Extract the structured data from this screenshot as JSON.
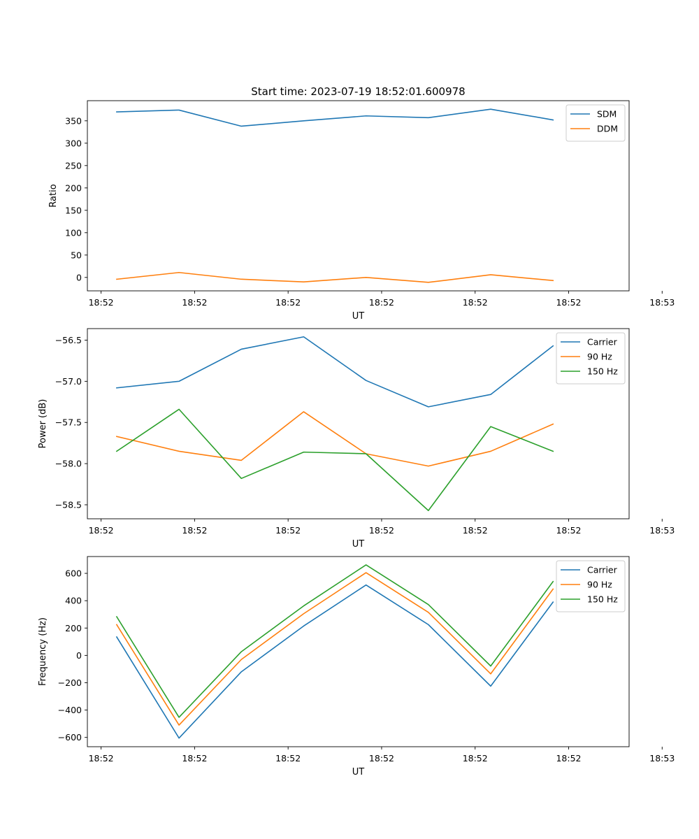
{
  "figure": {
    "title": "Start time: 2023-07-19 18:52:01.600978"
  },
  "colors": {
    "blue": "#1f77b4",
    "orange": "#ff7f0e",
    "green": "#2ca02c"
  },
  "chart_data": [
    {
      "type": "line",
      "title": "Start time: 2023-07-19 18:52:01.600978",
      "xlabel": "UT",
      "ylabel": "Ratio",
      "x": [
        1,
        2,
        3,
        4,
        5,
        6,
        7,
        8
      ],
      "xlim": [
        0.53,
        9.22
      ],
      "xticks": [
        0.75,
        2.25,
        3.75,
        5.25,
        6.75,
        8.25,
        9.75
      ],
      "xtick_labels": [
        "18:52",
        "18:52",
        "18:52",
        "18:52",
        "18:52",
        "18:52",
        "18:53"
      ],
      "ylim": [
        -30,
        395
      ],
      "yticks": [
        0,
        50,
        100,
        150,
        200,
        250,
        300,
        350
      ],
      "ytick_labels": [
        "0",
        "50",
        "100",
        "150",
        "200",
        "250",
        "300",
        "350"
      ],
      "legend": "top-right",
      "series": [
        {
          "name": "SDM",
          "color": "#1f77b4",
          "values": [
            370,
            374,
            338,
            350,
            361,
            357,
            376,
            352
          ]
        },
        {
          "name": "DDM",
          "color": "#ff7f0e",
          "values": [
            -4,
            11,
            -4,
            -10,
            0,
            -11,
            6,
            -7
          ]
        }
      ]
    },
    {
      "type": "line",
      "title": "",
      "xlabel": "UT",
      "ylabel": "Power (dB)",
      "x": [
        1,
        2,
        3,
        4,
        5,
        6,
        7,
        8
      ],
      "xlim": [
        0.53,
        9.22
      ],
      "xticks": [
        0.75,
        2.25,
        3.75,
        5.25,
        6.75,
        8.25,
        9.75
      ],
      "xtick_labels": [
        "18:52",
        "18:52",
        "18:52",
        "18:52",
        "18:52",
        "18:52",
        "18:53"
      ],
      "ylim": [
        -58.67,
        -56.36
      ],
      "yticks": [
        -58.5,
        -58.0,
        -57.5,
        -57.0,
        -56.5
      ],
      "ytick_labels": [
        "−58.5",
        "−58.0",
        "−57.5",
        "−57.0",
        "−56.5"
      ],
      "legend": "top-right",
      "series": [
        {
          "name": "Carrier",
          "color": "#1f77b4",
          "values": [
            -57.08,
            -57.0,
            -56.61,
            -56.46,
            -56.99,
            -57.31,
            -57.16,
            -56.57
          ]
        },
        {
          "name": "90 Hz",
          "color": "#ff7f0e",
          "values": [
            -57.67,
            -57.85,
            -57.96,
            -57.37,
            -57.88,
            -58.03,
            -57.85,
            -57.52
          ]
        },
        {
          "name": "150 Hz",
          "color": "#2ca02c",
          "values": [
            -57.85,
            -57.34,
            -58.18,
            -57.86,
            -57.88,
            -58.57,
            -57.55,
            -57.85
          ]
        }
      ]
    },
    {
      "type": "line",
      "title": "",
      "xlabel": "UT",
      "ylabel": "Frequency (Hz)",
      "x": [
        1,
        2,
        3,
        4,
        5,
        6,
        7,
        8
      ],
      "xlim": [
        0.53,
        9.22
      ],
      "xticks": [
        0.75,
        2.25,
        3.75,
        5.25,
        6.75,
        8.25,
        9.75
      ],
      "xtick_labels": [
        "18:52",
        "18:52",
        "18:52",
        "18:52",
        "18:52",
        "18:52",
        "18:53"
      ],
      "ylim": [
        -668,
        723
      ],
      "yticks": [
        -600,
        -400,
        -200,
        0,
        200,
        400,
        600
      ],
      "ytick_labels": [
        "−600",
        "−400",
        "−200",
        "0",
        "200",
        "400",
        "600"
      ],
      "legend": "top-right",
      "series": [
        {
          "name": "Carrier",
          "color": "#1f77b4",
          "values": [
            135,
            -605,
            -120,
            215,
            515,
            225,
            -225,
            390
          ]
        },
        {
          "name": "90 Hz",
          "color": "#ff7f0e",
          "values": [
            225,
            -510,
            -30,
            305,
            605,
            315,
            -135,
            485
          ]
        },
        {
          "name": "150 Hz",
          "color": "#2ca02c",
          "values": [
            283,
            -453,
            27,
            362,
            662,
            372,
            -78,
            540
          ]
        }
      ]
    }
  ]
}
